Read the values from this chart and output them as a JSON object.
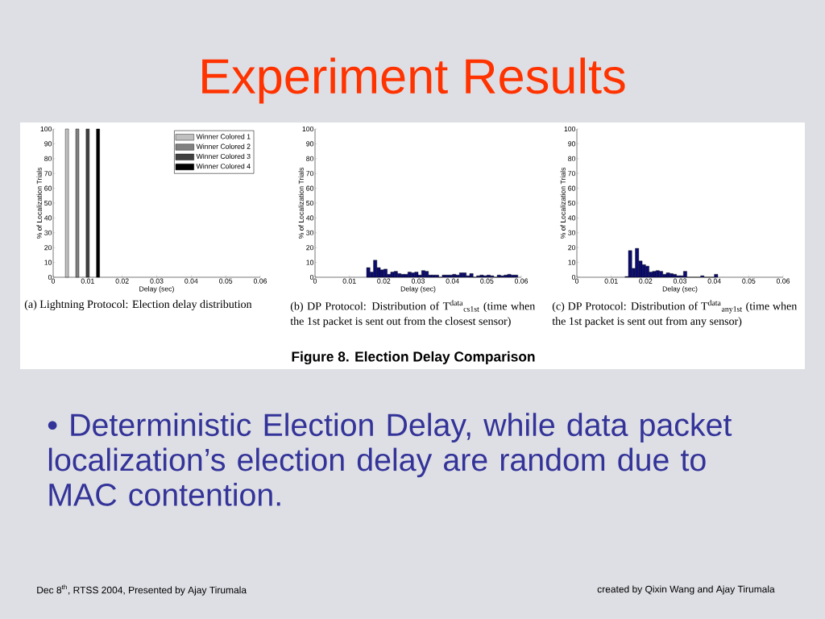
{
  "chart_data": [
    {
      "type": "bar",
      "xlabel": "Delay (sec)",
      "ylabel": "% of Localization Trials",
      "xlim": [
        0,
        0.06
      ],
      "ylim": [
        0,
        100
      ],
      "xticks": [
        0,
        0.01,
        0.02,
        0.03,
        0.04,
        0.05,
        0.06
      ],
      "yticks": [
        0,
        10,
        20,
        30,
        40,
        50,
        60,
        70,
        80,
        90,
        100
      ],
      "legend": "top right",
      "series": [
        {
          "name": "Winner Colored 1",
          "color": "#c0c0c0",
          "x": [
            0.004
          ],
          "values": [
            100
          ]
        },
        {
          "name": "Winner Colored 2",
          "color": "#808080",
          "x": [
            0.007
          ],
          "values": [
            100
          ]
        },
        {
          "name": "Winner Colored 3",
          "color": "#404040",
          "x": [
            0.01
          ],
          "values": [
            100
          ]
        },
        {
          "name": "Winner Colored 4",
          "color": "#000000",
          "x": [
            0.013
          ],
          "values": [
            100
          ]
        }
      ],
      "annotations": [
        "(a) Lightning Protocol: Election delay distribution"
      ]
    },
    {
      "type": "histogram",
      "xlabel": "Delay (sec)",
      "ylabel": "% of Localization Trials",
      "xlim": [
        0,
        0.06
      ],
      "ylim": [
        0,
        100
      ],
      "xticks": [
        0,
        0.01,
        0.02,
        0.03,
        0.04,
        0.05,
        0.06
      ],
      "yticks": [
        0,
        10,
        20,
        30,
        40,
        50,
        60,
        70,
        80,
        90,
        100
      ],
      "color": "#0b0b70",
      "bins": [
        0.015,
        0.016,
        0.017,
        0.018,
        0.019,
        0.02,
        0.021,
        0.022,
        0.023,
        0.024,
        0.025,
        0.026,
        0.027,
        0.028,
        0.029,
        0.03,
        0.031,
        0.032,
        0.033,
        0.034,
        0.035,
        0.036,
        0.037,
        0.038,
        0.039,
        0.04,
        0.041,
        0.042,
        0.043,
        0.044,
        0.045,
        0.046,
        0.047,
        0.048,
        0.049,
        0.05,
        0.051,
        0.052,
        0.053,
        0.054,
        0.055,
        0.056,
        0.057,
        0.058,
        0.059
      ],
      "values": [
        6.5,
        3.5,
        11.5,
        6.5,
        5,
        5.5,
        2,
        3.5,
        4,
        2.5,
        2,
        2,
        3.5,
        3,
        3.5,
        1.5,
        4.5,
        4,
        1.5,
        1.5,
        1.5,
        0,
        1.5,
        1.5,
        1.5,
        2,
        1.5,
        3,
        3,
        1,
        2.5,
        0,
        1,
        1.5,
        1,
        1.5,
        1,
        0,
        1.5,
        1,
        1.5,
        2,
        1.5,
        1.5
      ],
      "annotations": [
        "(b) DP Protocol: Distribution of T$^{data}$$_{cs1st}$ (time when the 1st packet is sent out from the closest sensor)"
      ]
    },
    {
      "type": "histogram",
      "xlabel": "Delay (sec)",
      "ylabel": "% of Localization Trials",
      "xlim": [
        0,
        0.06
      ],
      "ylim": [
        0,
        100
      ],
      "xticks": [
        0,
        0.01,
        0.02,
        0.03,
        0.04,
        0.05,
        0.06
      ],
      "yticks": [
        0,
        10,
        20,
        30,
        40,
        50,
        60,
        70,
        80,
        90,
        100
      ],
      "color": "#0b0b70",
      "bins": [
        0.014,
        0.015,
        0.016,
        0.017,
        0.018,
        0.019,
        0.02,
        0.021,
        0.022,
        0.023,
        0.024,
        0.025,
        0.026,
        0.027,
        0.028,
        0.029,
        0.03,
        0.031,
        0.032,
        0.033,
        0.034,
        0.035,
        0.036,
        0.037,
        0.038,
        0.039,
        0.04,
        0.041
      ],
      "values": [
        0.5,
        18,
        6,
        19.5,
        11,
        8.5,
        7.5,
        3.5,
        4,
        4.5,
        4,
        2,
        3,
        2.5,
        2,
        1,
        1,
        4,
        0,
        0,
        0,
        0,
        1,
        0,
        0,
        0,
        2
      ],
      "annotations": [
        "(c) DP Protocol: Distribution of T$^{data}$$_{any1st}$ (time when the 1st packet is sent out from any sensor)"
      ]
    },
    {
      "type": "other",
      "title": "Experiment Results",
      "annotations": [
        "Figure 8. Election Delay Comparison",
        "• Deterministic Election Delay, while data packet localization’s election delay are random due to MAC contention.",
        "Dec 8$^{th}$, RTSS 2004, Presented by Ajay Tirumala",
        "created  by Qixin Wang and Ajay Tirumala"
      ]
    }
  ]
}
